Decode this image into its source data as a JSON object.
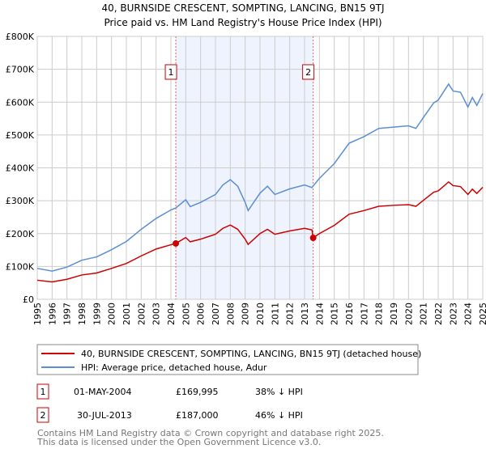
{
  "chart_data": {
    "type": "line",
    "title": "40, BURNSIDE CRESCENT, SOMPTING, LANCING, BN15 9TJ",
    "subtitle": "Price paid vs. HM Land Registry's House Price Index (HPI)",
    "xlim": [
      1995,
      2025
    ],
    "ylim": [
      0,
      800000
    ],
    "x_ticks": [
      "1995",
      "1996",
      "1997",
      "1998",
      "1999",
      "2000",
      "2001",
      "2002",
      "2003",
      "2004",
      "2005",
      "2006",
      "2007",
      "2008",
      "2009",
      "2010",
      "2011",
      "2012",
      "2013",
      "2014",
      "2015",
      "2016",
      "2017",
      "2018",
      "2019",
      "2020",
      "2021",
      "2022",
      "2023",
      "2024",
      "2025"
    ],
    "y_ticks": [
      {
        "v": 0,
        "label": "£0"
      },
      {
        "v": 100000,
        "label": "£100K"
      },
      {
        "v": 200000,
        "label": "£200K"
      },
      {
        "v": 300000,
        "label": "£300K"
      },
      {
        "v": 400000,
        "label": "£400K"
      },
      {
        "v": 500000,
        "label": "£500K"
      },
      {
        "v": 600000,
        "label": "£600K"
      },
      {
        "v": 700000,
        "label": "£700K"
      },
      {
        "v": 800000,
        "label": "£800K"
      }
    ],
    "grid": true,
    "series": [
      {
        "name": "40, BURNSIDE CRESCENT, SOMPTING, LANCING, BN15 9TJ (detached house)",
        "color": "#cc0000",
        "x": [
          1995,
          1996,
          1997,
          1998,
          1999,
          2000,
          2001,
          2002,
          2003,
          2004,
          2004.33,
          2005,
          2005.3,
          2006,
          2007,
          2007.5,
          2008,
          2008.5,
          2009,
          2009.2,
          2010,
          2010.5,
          2011,
          2012,
          2013,
          2013.5,
          2013.58,
          2014,
          2015,
          2016,
          2017,
          2018,
          2019,
          2020,
          2020.5,
          2021,
          2021.7,
          2022,
          2022.7,
          2023,
          2023.5,
          2024,
          2024.3,
          2024.6,
          2025
        ],
        "y": [
          58000,
          53000,
          61000,
          74000,
          80000,
          94000,
          109000,
          132000,
          153000,
          166000,
          169995,
          188000,
          175000,
          183000,
          198000,
          216000,
          226000,
          213000,
          183000,
          167000,
          200000,
          213000,
          198000,
          208000,
          216000,
          211000,
          187000,
          200000,
          225000,
          259000,
          270000,
          283000,
          286000,
          288000,
          283000,
          301000,
          326000,
          330000,
          357000,
          346000,
          343000,
          319000,
          335000,
          322000,
          341000
        ]
      },
      {
        "name": "HPI: Average price, detached house, Adur",
        "color": "#5b8fd1",
        "x": [
          1995,
          1996,
          1997,
          1998,
          1999,
          2000,
          2001,
          2002,
          2003,
          2004,
          2004.33,
          2005,
          2005.3,
          2006,
          2007,
          2007.5,
          2008,
          2008.5,
          2009,
          2009.2,
          2010,
          2010.5,
          2011,
          2012,
          2013,
          2013.5,
          2013.58,
          2014,
          2015,
          2016,
          2017,
          2018,
          2019,
          2020,
          2020.5,
          2021,
          2021.7,
          2022,
          2022.7,
          2023,
          2023.5,
          2024,
          2024.3,
          2024.6,
          2025
        ],
        "y": [
          94000,
          86000,
          98000,
          119000,
          129000,
          151000,
          176000,
          213000,
          246000,
          272000,
          278000,
          303000,
          282000,
          295000,
          319000,
          348000,
          364000,
          344000,
          295000,
          270000,
          323000,
          344000,
          319000,
          336000,
          348000,
          340000,
          345000,
          368000,
          413000,
          475000,
          495000,
          520000,
          524000,
          528000,
          520000,
          553000,
          598000,
          606000,
          655000,
          634000,
          630000,
          585000,
          614000,
          590000,
          626000
        ]
      }
    ],
    "sales": [
      {
        "label": "1",
        "x": 2004.33,
        "date": "01-MAY-2004",
        "price": 169995,
        "price_text": "£169,995",
        "hpi_text": "38% ↓ HPI"
      },
      {
        "label": "2",
        "x": 2013.58,
        "date": "30-JUL-2013",
        "price": 187000,
        "price_text": "£187,000",
        "hpi_text": "46% ↓ HPI"
      }
    ],
    "legend_placement": "bottom"
  },
  "footer": {
    "line1": "Contains HM Land Registry data © Crown copyright and database right 2025.",
    "line2": "This data is licensed under the Open Government Licence v3.0."
  }
}
